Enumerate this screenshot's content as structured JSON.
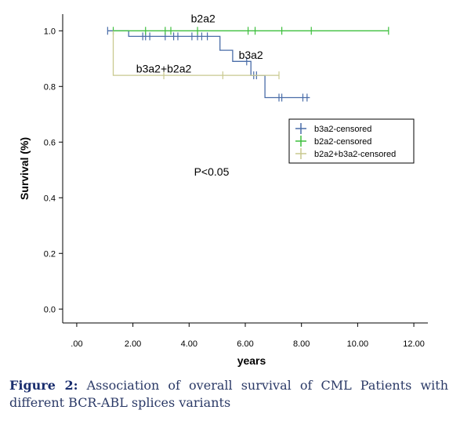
{
  "chart_data": {
    "type": "line",
    "subtype": "kaplan-meier step plot",
    "xlabel": "years",
    "ylabel": "Survival  (%)",
    "xlim": [
      -0.5,
      12.5
    ],
    "ylim": [
      -0.05,
      1.06
    ],
    "xticks": [
      0,
      2,
      4,
      6,
      8,
      10,
      12
    ],
    "xtick_labels": [
      ".00",
      "2.00",
      "4.00",
      "6.00",
      "8.00",
      "10.00",
      "12.00"
    ],
    "yticks": [
      0,
      0.2,
      0.4,
      0.6,
      0.8,
      1.0
    ],
    "ytick_labels": [
      "0.0",
      "0.2",
      "0.4",
      "0.6",
      "0.8",
      "1.0"
    ],
    "grid": false,
    "legend_position": "right",
    "series": [
      {
        "key": "b3a2",
        "name": "b3a2",
        "color": "#4a6da8",
        "steps": [
          [
            1.1,
            1.0
          ],
          [
            1.85,
            1.0
          ],
          [
            1.85,
            0.98
          ],
          [
            5.1,
            0.98
          ],
          [
            5.1,
            0.93
          ],
          [
            5.55,
            0.93
          ],
          [
            5.55,
            0.89
          ],
          [
            6.2,
            0.89
          ],
          [
            6.2,
            0.84
          ],
          [
            6.7,
            0.84
          ],
          [
            6.7,
            0.76
          ],
          [
            8.3,
            0.76
          ]
        ],
        "censored": [
          [
            1.1,
            1.0
          ],
          [
            2.35,
            0.98
          ],
          [
            2.45,
            0.98
          ],
          [
            2.6,
            0.98
          ],
          [
            3.15,
            0.98
          ],
          [
            3.45,
            0.98
          ],
          [
            3.6,
            0.98
          ],
          [
            4.1,
            0.98
          ],
          [
            4.3,
            0.98
          ],
          [
            4.45,
            0.98
          ],
          [
            4.65,
            0.98
          ],
          [
            6.05,
            0.89
          ],
          [
            6.3,
            0.84
          ],
          [
            6.4,
            0.84
          ],
          [
            7.2,
            0.76
          ],
          [
            7.3,
            0.76
          ],
          [
            8.05,
            0.76
          ],
          [
            8.2,
            0.76
          ]
        ]
      },
      {
        "key": "b2a2",
        "name": "b2a2",
        "color": "#3dbf3d",
        "steps": [
          [
            1.3,
            1.0
          ],
          [
            11.1,
            1.0
          ]
        ],
        "censored": [
          [
            1.3,
            1.0
          ],
          [
            2.45,
            1.0
          ],
          [
            3.15,
            1.0
          ],
          [
            3.35,
            1.0
          ],
          [
            4.3,
            1.0
          ],
          [
            6.1,
            1.0
          ],
          [
            6.35,
            1.0
          ],
          [
            7.3,
            1.0
          ],
          [
            8.35,
            1.0
          ],
          [
            11.1,
            1.0
          ]
        ]
      },
      {
        "key": "b2a2+b3a2",
        "name": "b3a2+b2a2",
        "color": "#c9c98f",
        "steps": [
          [
            1.3,
            1.0
          ],
          [
            1.3,
            0.84
          ],
          [
            7.2,
            0.84
          ]
        ],
        "censored": [
          [
            3.1,
            0.84
          ],
          [
            5.2,
            0.84
          ],
          [
            7.2,
            0.84
          ]
        ]
      }
    ],
    "annotations": [
      {
        "text": "b2a2",
        "x": 4.5,
        "y": 1.03
      },
      {
        "text": "b3a2",
        "x": 6.2,
        "y": 0.9
      },
      {
        "text": "b3a2+b2a2",
        "x": 3.1,
        "y": 0.85
      },
      {
        "text": "P<0.05",
        "x": 4.8,
        "y": 0.48
      }
    ],
    "legend": [
      {
        "label": "b3a2-censored",
        "series": "b3a2"
      },
      {
        "label": "b2a2-censored",
        "series": "b2a2"
      },
      {
        "label": "b2a2+b3a2-censored",
        "series": "b2a2+b3a2"
      }
    ]
  },
  "caption": {
    "label": "Figure 2:",
    "text": " Association of overall survival of CML Patients with different BCR-ABL splices variants"
  }
}
